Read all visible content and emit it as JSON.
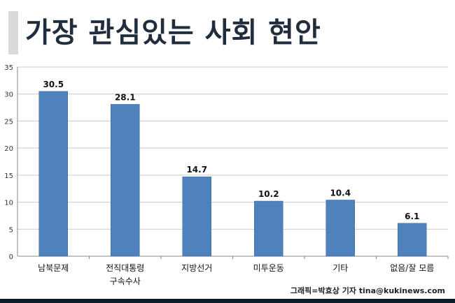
{
  "title": "가장 관심있는 사회 현안",
  "credit": "그래픽=박효상 기자 tina@kukinews.com",
  "colors": {
    "bar": "#4f81bd",
    "bar_edge": "#3a6aa3",
    "grid": "#c9c9c9",
    "title": "#1f2d3d"
  },
  "chart_data": {
    "type": "bar",
    "categories": [
      [
        "남북문제"
      ],
      [
        "전직대통령",
        "구속수사"
      ],
      [
        "지방선거"
      ],
      [
        "미투운동"
      ],
      [
        "기타"
      ],
      [
        "없음/잘 모름"
      ]
    ],
    "values": [
      30.5,
      28.1,
      14.7,
      10.2,
      10.4,
      6.1
    ],
    "value_labels": [
      "30.5",
      "28.1",
      "14.7",
      "10.2",
      "10.4",
      "6.1"
    ],
    "ylim": [
      0,
      35
    ],
    "yticks": [
      0,
      5,
      10,
      15,
      20,
      25,
      30,
      35
    ],
    "grid": true,
    "xlabel": "",
    "ylabel": ""
  }
}
